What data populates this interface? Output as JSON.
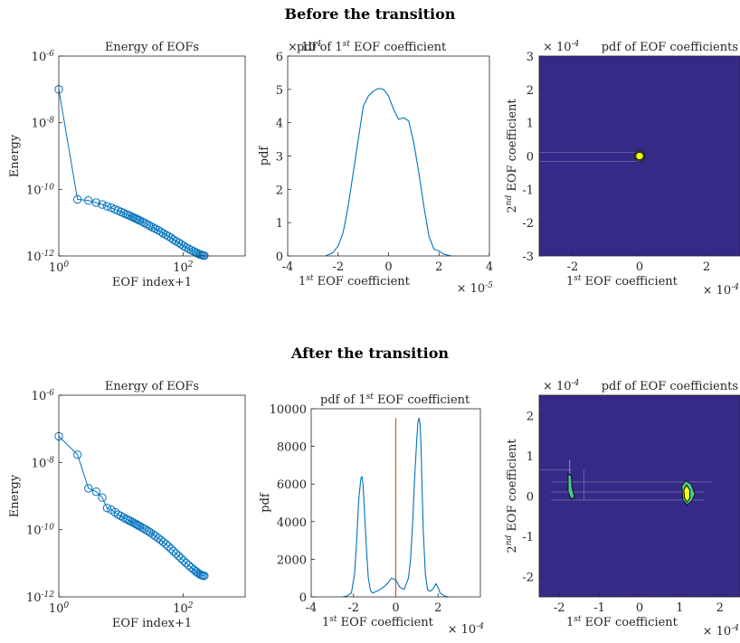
{
  "sections": [
    {
      "title": "Before the transition"
    },
    {
      "title": "After the transition"
    }
  ],
  "chart_data": [
    {
      "id": "before-energy",
      "type": "scatter",
      "title": "Energy of EOFs",
      "xlabel": "EOF index+1",
      "ylabel": "Energy",
      "xscale": "log",
      "yscale": "log",
      "xlim": [
        1,
        1000
      ],
      "ylim": [
        1e-12,
        1e-06
      ],
      "x_ticks": [
        {
          "value": 1,
          "base": "10",
          "exp": "0"
        },
        {
          "value": 100,
          "base": "10",
          "exp": "2"
        }
      ],
      "y_ticks": [
        {
          "value": 1e-12,
          "base": "10",
          "exp": "-12"
        },
        {
          "value": 1e-10,
          "base": "10",
          "exp": "-10"
        },
        {
          "value": 1e-08,
          "base": "10",
          "exp": "-8"
        },
        {
          "value": 1e-06,
          "base": "10",
          "exp": "-6"
        }
      ],
      "series": [
        {
          "color": "#0072BD",
          "marker": "circle",
          "x": [
            1,
            2,
            3,
            4,
            5,
            6,
            7,
            8,
            9,
            10,
            11,
            12,
            13,
            14,
            15,
            16,
            17,
            18,
            19,
            20,
            22,
            24,
            26,
            28,
            30,
            33,
            36,
            40,
            44,
            48,
            53,
            58,
            64,
            70,
            77,
            85,
            93,
            102,
            112,
            123,
            135,
            148,
            160,
            170,
            180,
            190,
            200,
            210,
            220
          ],
          "y": [
            1e-07,
            5e-11,
            4.6e-11,
            4e-11,
            3.5e-11,
            3.1e-11,
            2.8e-11,
            2.5e-11,
            2.3e-11,
            2.1e-11,
            1.95e-11,
            1.8e-11,
            1.7e-11,
            1.6e-11,
            1.5e-11,
            1.42e-11,
            1.35e-11,
            1.28e-11,
            1.22e-11,
            1.16e-11,
            1.06e-11,
            9.8e-12,
            9e-12,
            8.4e-12,
            7.8e-12,
            7.1e-12,
            6.5e-12,
            5.9e-12,
            5.3e-12,
            4.8e-12,
            4.3e-12,
            3.9e-12,
            3.5e-12,
            3.1e-12,
            2.8e-12,
            2.5e-12,
            2.25e-12,
            2e-12,
            1.8e-12,
            1.65e-12,
            1.5e-12,
            1.38e-12,
            1.28e-12,
            1.2e-12,
            1.14e-12,
            1.1e-12,
            1.07e-12,
            1.04e-12,
            1.02e-12
          ]
        }
      ]
    },
    {
      "id": "before-pdf",
      "type": "line",
      "title_main": "pdf of 1",
      "title_sup": "st",
      "title_rest": " EOF coefficient",
      "xlabel_sup": "st",
      "xlabel_main": "1",
      "xlabel_rest": " EOF coefficient",
      "ylabel": "pdf",
      "xlim": [
        -4e-05,
        4e-05
      ],
      "ylim": [
        0,
        60000
      ],
      "x_tick_labels": [
        "-4",
        "-2",
        "0",
        "2",
        "4"
      ],
      "x_tick_values": [
        -4e-05,
        -2e-05,
        0,
        2e-05,
        4e-05
      ],
      "y_tick_labels": [
        "0",
        "1",
        "2",
        "3",
        "4",
        "5",
        "6"
      ],
      "y_tick_values": [
        0,
        10000,
        20000,
        30000,
        40000,
        50000,
        60000
      ],
      "y_exponent": {
        "base": "× 10",
        "exp": "4"
      },
      "x_exponent": {
        "base": "× 10",
        "exp": "-5"
      },
      "series": [
        {
          "color": "#0072BD",
          "x": [
            -2.5e-05,
            -2.2e-05,
            -2e-05,
            -1.8e-05,
            -1.6e-05,
            -1.4e-05,
            -1.2e-05,
            -1e-05,
            -8e-06,
            -6e-06,
            -4e-06,
            -2e-06,
            0,
            2e-06,
            4e-06,
            6e-06,
            8e-06,
            1e-05,
            1.2e-05,
            1.4e-05,
            1.6e-05,
            1.8e-05,
            2e-05,
            2.2e-05,
            2.5e-05
          ],
          "y": [
            0,
            1000,
            3000,
            7000,
            15000,
            25000,
            35000,
            45000,
            48000,
            49500,
            50300,
            50000,
            48000,
            44000,
            41000,
            41500,
            40500,
            34000,
            25000,
            15000,
            6000,
            2000,
            1500,
            500,
            0
          ]
        }
      ]
    },
    {
      "id": "before-2d",
      "type": "heatmap",
      "title": "pdf of EOF coefficients",
      "xlabel_main": "1",
      "xlabel_sup": "st",
      "xlabel_rest": " EOF coefficient",
      "ylabel_main": "2",
      "ylabel_sup": "nd",
      "ylabel_rest": " EOF coefficient",
      "xlim": [
        -0.0003,
        0.0003
      ],
      "ylim": [
        -0.0003,
        0.0003
      ],
      "x_tick_labels": [
        "-2",
        "0",
        "2"
      ],
      "x_tick_values": [
        -0.0002,
        0,
        0.0002
      ],
      "y_tick_labels": [
        "-3",
        "-2",
        "-1",
        "0",
        "1",
        "2",
        "3"
      ],
      "y_tick_values": [
        -0.0003,
        -0.0002,
        -0.0001,
        0,
        0.0001,
        0.0002,
        0.0003
      ],
      "x_exponent": {
        "base": "× 10",
        "exp": "-4"
      },
      "y_exponent": {
        "base": "× 10",
        "exp": "-4"
      },
      "colors": {
        "background": "#352A87",
        "outer": "#4BC395",
        "inner": "#F9FB0E"
      },
      "blobs": [
        {
          "cx": 0,
          "cy": 0,
          "r_outer": 1.6e-05,
          "r_inner": 1.2e-05
        }
      ]
    },
    {
      "id": "after-energy",
      "type": "scatter",
      "title": "Energy of EOFs",
      "xlabel": "EOF index+1",
      "ylabel": "Energy",
      "xscale": "log",
      "yscale": "log",
      "xlim": [
        1,
        1000
      ],
      "ylim": [
        1e-12,
        1e-06
      ],
      "x_ticks": [
        {
          "value": 1,
          "base": "10",
          "exp": "0"
        },
        {
          "value": 100,
          "base": "10",
          "exp": "2"
        }
      ],
      "y_ticks": [
        {
          "value": 1e-12,
          "base": "10",
          "exp": "-12"
        },
        {
          "value": 1e-10,
          "base": "10",
          "exp": "-10"
        },
        {
          "value": 1e-08,
          "base": "10",
          "exp": "-8"
        },
        {
          "value": 1e-06,
          "base": "10",
          "exp": "-6"
        }
      ],
      "series": [
        {
          "color": "#0072BD",
          "marker": "circle",
          "x": [
            1,
            2,
            3,
            4,
            5,
            6,
            7,
            8,
            9,
            10,
            11,
            12,
            13,
            14,
            15,
            16,
            17,
            18,
            19,
            20,
            22,
            24,
            26,
            28,
            30,
            33,
            36,
            40,
            44,
            48,
            53,
            58,
            64,
            70,
            77,
            85,
            93,
            102,
            112,
            123,
            135,
            148,
            160,
            170,
            180,
            190,
            200,
            210,
            220
          ],
          "y": [
            6e-08,
            1.7e-08,
            1.7e-09,
            1.35e-09,
            9e-10,
            4.4e-10,
            3.9e-10,
            3.3e-10,
            2.8e-10,
            2.55e-10,
            2.3e-10,
            2.1e-10,
            1.95e-10,
            1.82e-10,
            1.7e-10,
            1.6e-10,
            1.5e-10,
            1.42e-10,
            1.34e-10,
            1.27e-10,
            1.15e-10,
            1.05e-10,
            9.6e-11,
            8.8e-11,
            8.1e-11,
            7.2e-11,
            6.4e-11,
            5.6e-11,
            4.9e-11,
            4.3e-11,
            3.7e-11,
            3.2e-11,
            2.7e-11,
            2.3e-11,
            1.95e-11,
            1.65e-11,
            1.4e-11,
            1.2e-11,
            1.02e-11,
            8.7e-12,
            7.5e-12,
            6.5e-12,
            5.8e-12,
            5.3e-12,
            4.9e-12,
            4.6e-12,
            4.4e-12,
            4.3e-12,
            4.2e-12
          ]
        }
      ]
    },
    {
      "id": "after-pdf",
      "type": "line",
      "title_main": "pdf of 1",
      "title_sup": "st",
      "title_rest": " EOF coefficient",
      "xlabel_main": "1",
      "xlabel_sup": "st",
      "xlabel_rest": " EOF coefficient",
      "ylabel": "pdf",
      "xlim": [
        -0.0004,
        0.0004
      ],
      "ylim": [
        0,
        10000
      ],
      "x_tick_labels": [
        "-4",
        "-2",
        "0",
        "2"
      ],
      "x_tick_values": [
        -0.0004,
        -0.0002,
        0,
        0.0002
      ],
      "y_tick_labels": [
        "0",
        "2000",
        "4000",
        "6000",
        "8000",
        "10000"
      ],
      "y_tick_values": [
        0,
        2000,
        4000,
        6000,
        8000,
        10000
      ],
      "x_exponent": {
        "base": "× 10",
        "exp": "-4"
      },
      "vline": {
        "x": 0,
        "ymax": 9500,
        "color": "#D95319"
      },
      "series": [
        {
          "color": "#0072BD",
          "x": [
            -0.00025,
            -0.00023,
            -0.00021,
            -0.000195,
            -0.000185,
            -0.000175,
            -0.000165,
            -0.00016,
            -0.000155,
            -0.00015,
            -0.00014,
            -0.00013,
            -0.00012,
            -0.00011,
            -0.0001,
            -8e-05,
            -6e-05,
            -4e-05,
            -2e-05,
            0,
            2e-05,
            4e-05,
            6e-05,
            7e-05,
            8e-05,
            9e-05,
            0.0001,
            0.000105,
            0.00011,
            0.000115,
            0.00012,
            0.000125,
            0.00013,
            0.00014,
            0.00015,
            0.00016,
            0.00017,
            0.00018,
            0.00019,
            0.0002,
            0.00021,
            0.00023,
            0.00025
          ],
          "y": [
            0,
            50,
            200,
            1200,
            3000,
            5200,
            6300,
            6400,
            6000,
            5000,
            2800,
            1000,
            350,
            200,
            250,
            350,
            500,
            700,
            1000,
            900,
            500,
            400,
            1000,
            2000,
            4000,
            6500,
            8500,
            9300,
            9500,
            9200,
            7800,
            5500,
            3500,
            1200,
            400,
            300,
            350,
            500,
            700,
            500,
            200,
            50,
            0
          ]
        }
      ]
    },
    {
      "id": "after-2d",
      "type": "heatmap",
      "title": "pdf of EOF coefficients",
      "xlabel_main": "1",
      "xlabel_sup": "st",
      "xlabel_rest": " EOF coefficient",
      "ylabel_main": "2",
      "ylabel_sup": "nd",
      "ylabel_rest": " EOF coefficient",
      "xlim": [
        -0.00025,
        0.00025
      ],
      "ylim": [
        -0.00025,
        0.00025
      ],
      "x_tick_labels": [
        "-2",
        "-1",
        "0",
        "1",
        "2"
      ],
      "x_tick_values": [
        -0.0002,
        -0.0001,
        0,
        0.0001,
        0.0002
      ],
      "y_tick_labels": [
        "-2",
        "-1",
        "0",
        "1",
        "2"
      ],
      "y_tick_values": [
        -0.0002,
        -0.0001,
        0,
        0.0001,
        0.0002
      ],
      "x_exponent": {
        "base": "× 10",
        "exp": "-4"
      },
      "y_exponent": {
        "base": "× 10",
        "exp": "-4"
      },
      "colors": {
        "background": "#352A87",
        "outer": "#4BC395",
        "inner": "#F9FB0E"
      }
    }
  ]
}
